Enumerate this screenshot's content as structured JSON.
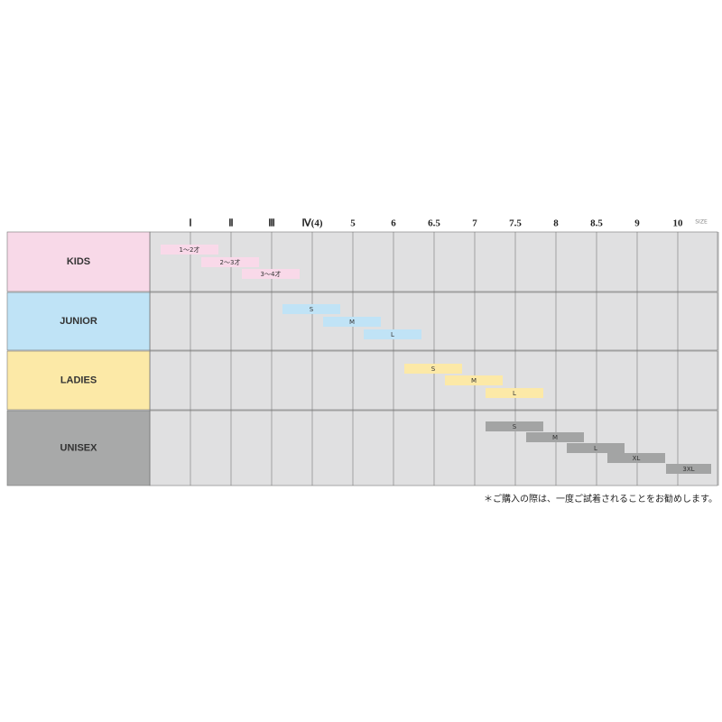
{
  "header": {
    "columns": [
      "Ⅰ",
      "Ⅱ",
      "Ⅲ",
      "Ⅳ(4)",
      "5",
      "6",
      "6.5",
      "7",
      "7.5",
      "8",
      "8.5",
      "9",
      "10"
    ],
    "unit": "SIZE"
  },
  "rows": [
    {
      "label": "KIDS",
      "bars": [
        "1～2才",
        "2～3才",
        "3～4才"
      ]
    },
    {
      "label": "JUNIOR",
      "bars": [
        "S",
        "M",
        "L"
      ]
    },
    {
      "label": "LADIES",
      "bars": [
        "S",
        "M",
        "L"
      ]
    },
    {
      "label": "UNISEX",
      "bars": [
        "S",
        "M",
        "L",
        "XL",
        "3XL"
      ]
    }
  ],
  "footnote": "＊ご購入の際は、一度ご試着されることをお勧めします。"
}
